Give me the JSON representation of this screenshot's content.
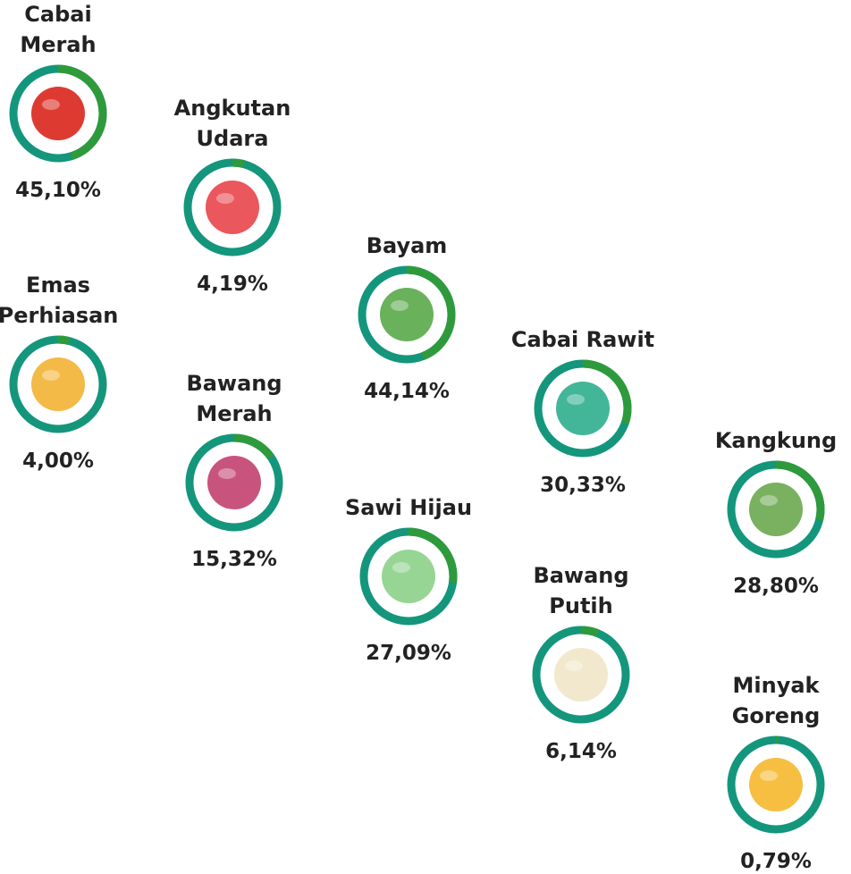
{
  "chart_data": {
    "type": "gauge",
    "categories": [
      "Cabai Merah",
      "Angkutan Udara",
      "Emas Perhiasan",
      "Bayam",
      "Bawang Merah",
      "Cabai Rawit",
      "Sawi Hijau",
      "Kangkung",
      "Bawang Putih",
      "Minyak Goreng"
    ],
    "values": [
      45.1,
      4.19,
      4.0,
      44.14,
      15.32,
      30.33,
      27.09,
      28.8,
      6.14,
      0.79
    ],
    "value_labels": [
      "45,10%",
      "4,19%",
      "4,00%",
      "44,14%",
      "15,32%",
      "30,33%",
      "27,09%",
      "28,80%",
      "6,14%",
      "0,79%"
    ],
    "color": "#2e9a3c",
    "track_color": "#14967c",
    "ylim": [
      0,
      100
    ]
  }
}
